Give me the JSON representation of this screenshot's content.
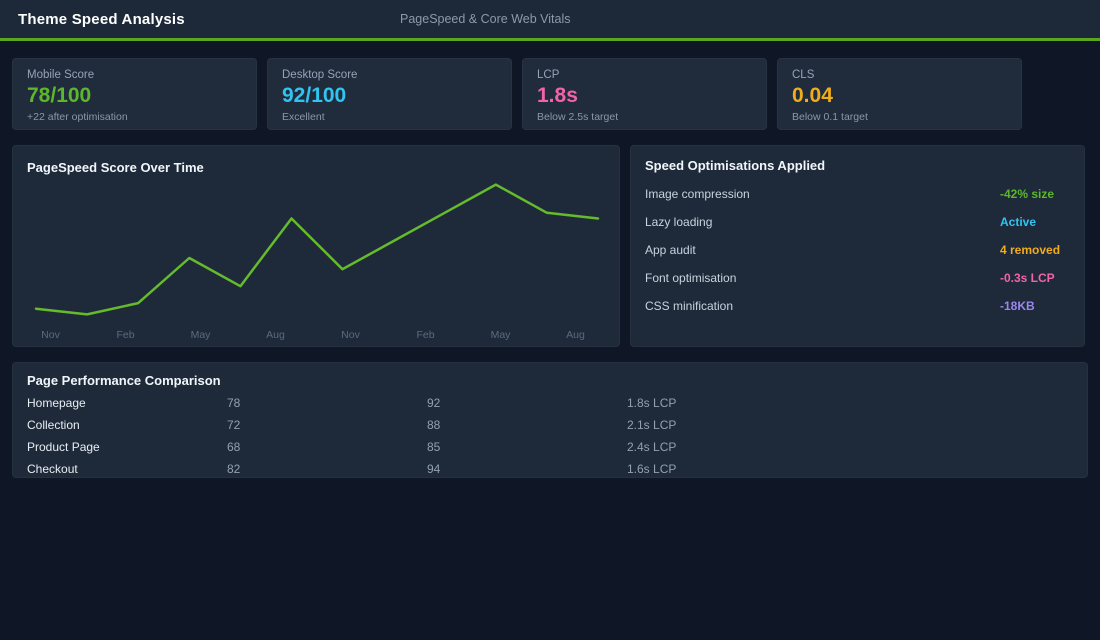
{
  "header": {
    "title": "Theme Speed Analysis",
    "subtitle": "PageSpeed & Core Web Vitals"
  },
  "colors": {
    "page_bg": "#0f1726",
    "header_bg": "#1d2938",
    "accent_line": "#5ca51e",
    "green": "#5cb72b",
    "cyan": "#2fc5f0",
    "pink": "#f263aa",
    "amber": "#f0ac1a",
    "purple": "#9c85ee"
  },
  "stat_cards": [
    {
      "label": "Mobile Score",
      "value": "78/100",
      "sub": "+22 after optimisation",
      "color": "green"
    },
    {
      "label": "Desktop Score",
      "value": "92/100",
      "sub": "Excellent",
      "color": "cyan"
    },
    {
      "label": "LCP",
      "value": "1.8s",
      "sub": "Below 2.5s target",
      "color": "pink"
    },
    {
      "label": "CLS",
      "value": "0.04",
      "sub": "Below 0.1 target",
      "color": "amber"
    }
  ],
  "chart_data": {
    "type": "line",
    "title": "PageSpeed Score Over Time",
    "x_labels": [
      "Nov",
      "Feb",
      "May",
      "Aug",
      "Nov",
      "Feb",
      "May",
      "Aug"
    ],
    "values": [
      56,
      55,
      57,
      65,
      60,
      72,
      63,
      68,
      73,
      78,
      73,
      72
    ],
    "ylim": [
      54,
      79
    ],
    "ylabel": "",
    "xlabel": "",
    "grid": false,
    "legend_position": "none",
    "line_color": "#65bb2b"
  },
  "optimisations": {
    "title": "Speed Optimisations Applied",
    "items": [
      {
        "label": "Image compression",
        "value": "-42% size",
        "color": "green"
      },
      {
        "label": "Lazy loading",
        "value": "Active",
        "color": "cyan"
      },
      {
        "label": "App audit",
        "value": "4 removed",
        "color": "amber"
      },
      {
        "label": "Font optimisation",
        "value": "-0.3s LCP",
        "color": "pink"
      },
      {
        "label": "CSS minification",
        "value": "-18KB",
        "color": "purple"
      }
    ]
  },
  "comparison": {
    "title": "Page Performance Comparison",
    "rows": [
      {
        "page": "Homepage",
        "mobile": "78",
        "desktop": "92",
        "lcp": "1.8s LCP"
      },
      {
        "page": "Collection",
        "mobile": "72",
        "desktop": "88",
        "lcp": "2.1s LCP"
      },
      {
        "page": "Product Page",
        "mobile": "68",
        "desktop": "85",
        "lcp": "2.4s LCP"
      },
      {
        "page": "Checkout",
        "mobile": "82",
        "desktop": "94",
        "lcp": "1.6s LCP"
      }
    ]
  }
}
